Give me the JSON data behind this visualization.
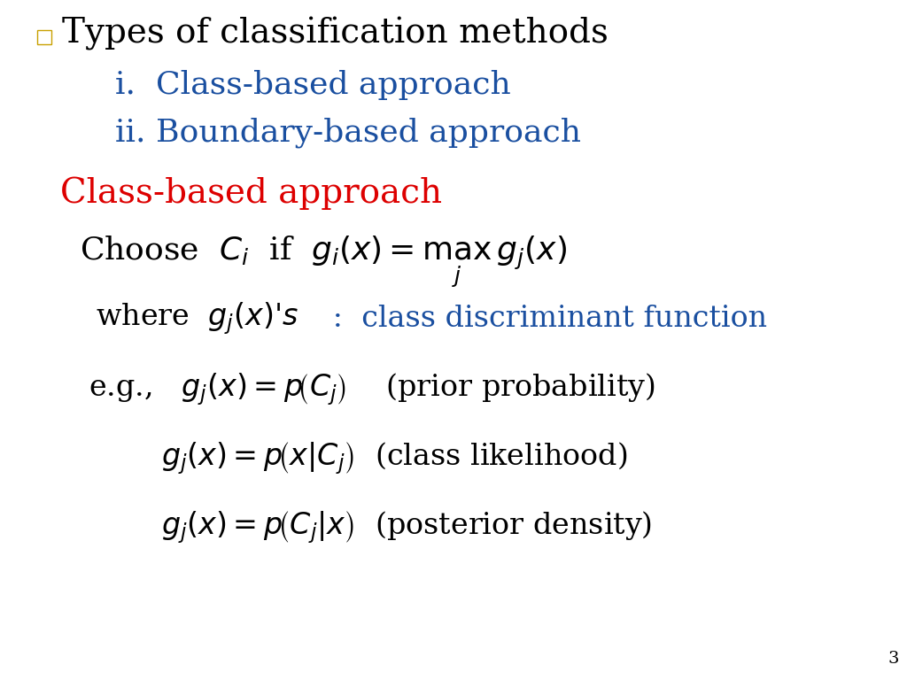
{
  "background_color": "#ffffff",
  "title_text": "Types of classification methods",
  "title_color": "#000000",
  "title_fontsize": 28,
  "bullet_color": "#c8a000",
  "item_i_text": "i.  Class-based approach",
  "item_ii_text": "ii. Boundary-based approach",
  "items_color": "#1a4fa0",
  "items_fontsize": 26,
  "section_header": "Class-based approach",
  "section_header_color": "#dd0000",
  "section_header_fontsize": 28,
  "choose_color": "#000000",
  "choose_fontsize": 26,
  "where_color_black": "#000000",
  "where_color_blue": "#1a4fa0",
  "where_fontsize": 24,
  "eg_color": "#000000",
  "eg_fontsize": 24,
  "page_number": "3",
  "page_num_color": "#000000",
  "page_num_fontsize": 14
}
